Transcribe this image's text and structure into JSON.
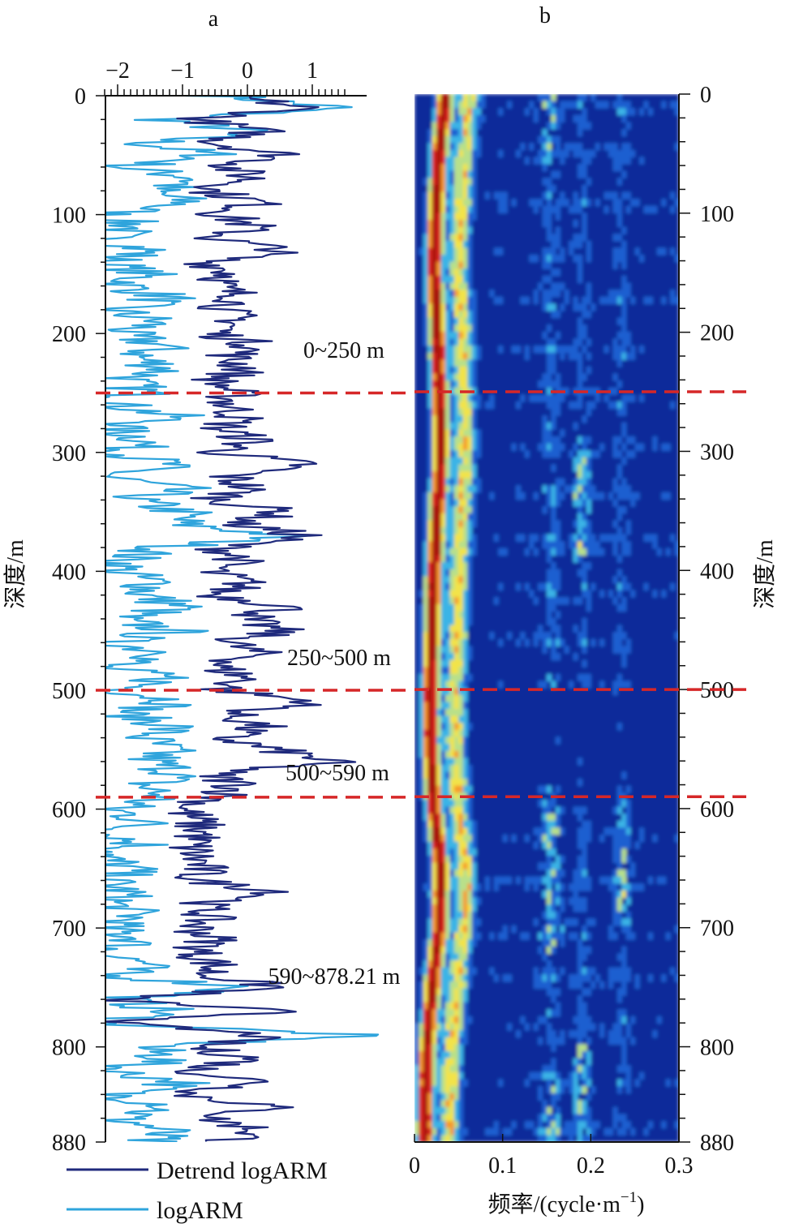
{
  "panels": {
    "a_label": "a",
    "b_label": "b"
  },
  "chart_data": [
    {
      "type": "line",
      "panel": "a",
      "x_ticks": [
        "−2",
        "−1",
        "0",
        "1"
      ],
      "x_tick_values": [
        -2,
        -1,
        0,
        1
      ],
      "xlim": [
        -2.3,
        1.6
      ],
      "y_ticks": [
        "0",
        "100",
        "200",
        "300",
        "400",
        "500",
        "600",
        "700",
        "800",
        "880"
      ],
      "y_tick_values": [
        0,
        100,
        200,
        300,
        400,
        500,
        600,
        700,
        800,
        880
      ],
      "ylim": [
        0,
        880
      ],
      "y_inverted": true,
      "ylabel": "深度/m",
      "legend_position": "bottom-left",
      "series": [
        {
          "name": "Detrend logARM",
          "color": "#1f2a7c",
          "depth": [
            0,
            10,
            20,
            30,
            40,
            50,
            60,
            70,
            80,
            90,
            100,
            110,
            120,
            130,
            140,
            150,
            160,
            170,
            180,
            190,
            200,
            210,
            220,
            230,
            240,
            250,
            260,
            270,
            280,
            290,
            300,
            310,
            320,
            330,
            340,
            350,
            360,
            370,
            380,
            390,
            400,
            410,
            420,
            430,
            440,
            450,
            460,
            470,
            480,
            490,
            500,
            510,
            520,
            530,
            540,
            550,
            560,
            570,
            580,
            590,
            600,
            610,
            620,
            630,
            640,
            650,
            660,
            670,
            680,
            690,
            700,
            710,
            720,
            730,
            740,
            750,
            760,
            770,
            780,
            790,
            800,
            810,
            820,
            830,
            840,
            850,
            860,
            870,
            880
          ],
          "value": [
            -0.3,
            0.9,
            -0.8,
            0.2,
            -0.5,
            0.6,
            -0.3,
            0.1,
            -0.6,
            0.2,
            -0.4,
            0.1,
            -0.5,
            0.6,
            -0.6,
            -0.2,
            -0.5,
            0.0,
            -0.4,
            -0.1,
            -0.5,
            0.2,
            -0.3,
            0.0,
            -0.5,
            -0.2,
            -0.3,
            -0.1,
            -0.4,
            0.1,
            -0.4,
            0.9,
            -0.3,
            0.0,
            -0.5,
            0.6,
            -0.2,
            0.9,
            -0.4,
            -0.1,
            -0.6,
            0.0,
            -0.5,
            0.7,
            -0.1,
            0.5,
            -0.3,
            0.2,
            -0.5,
            0.0,
            -0.4,
            1.1,
            -0.3,
            0.2,
            -0.4,
            0.4,
            1.3,
            -0.6,
            -0.1,
            -0.4,
            -1.0,
            -0.8,
            -0.7,
            -0.9,
            -0.8,
            -0.7,
            -0.8,
            0.6,
            -0.7,
            -0.6,
            -0.8,
            -0.5,
            -0.8,
            -0.5,
            -0.6,
            0.5,
            -2.2,
            0.5,
            -2.1,
            0.3,
            -0.8,
            0.1,
            -0.9,
            0.3,
            -1.0,
            0.4,
            -0.6,
            0.2,
            -0.3
          ]
        },
        {
          "name": "logARM",
          "color": "#2fa4dc",
          "depth": [
            0,
            10,
            20,
            30,
            40,
            50,
            60,
            70,
            80,
            90,
            100,
            110,
            120,
            130,
            140,
            150,
            160,
            170,
            180,
            190,
            200,
            210,
            220,
            230,
            240,
            250,
            260,
            270,
            280,
            290,
            300,
            310,
            320,
            330,
            340,
            350,
            360,
            370,
            380,
            390,
            400,
            410,
            420,
            430,
            440,
            450,
            460,
            470,
            480,
            490,
            500,
            510,
            520,
            530,
            540,
            550,
            560,
            570,
            580,
            590,
            600,
            610,
            620,
            630,
            640,
            650,
            660,
            670,
            680,
            690,
            700,
            710,
            720,
            730,
            740,
            750,
            760,
            770,
            780,
            790,
            800,
            810,
            820,
            830,
            840,
            850,
            860,
            870,
            880
          ],
          "value": [
            -0.4,
            1.4,
            -1.3,
            0.0,
            -1.6,
            -0.5,
            -1.9,
            -0.7,
            -1.5,
            -0.9,
            -2.2,
            -1.7,
            -2.3,
            -1.5,
            -2.2,
            -1.6,
            -1.9,
            -1.2,
            -2.1,
            -1.4,
            -2.0,
            -1.3,
            -1.7,
            -1.2,
            -1.9,
            -1.6,
            -2.0,
            -1.1,
            -2.1,
            -1.5,
            -2.0,
            -1.2,
            -2.2,
            -1.1,
            -1.8,
            -1.0,
            -1.1,
            0.6,
            -1.3,
            -1.9,
            -2.0,
            -1.4,
            -1.6,
            -1.0,
            -2.1,
            -1.1,
            -2.2,
            -1.0,
            -2.3,
            -1.2,
            -1.9,
            -1.0,
            -2.0,
            -1.1,
            -1.6,
            -1.3,
            -1.5,
            -1.0,
            -1.6,
            -1.3,
            -2.1,
            -1.5,
            -2.2,
            -1.6,
            -2.3,
            -1.8,
            -2.2,
            -1.9,
            -2.1,
            -1.7,
            -2.2,
            -1.6,
            -2.3,
            -1.5,
            -2.2,
            0.1,
            -2.0,
            -1.2,
            -2.3,
            1.7,
            -1.6,
            -1.2,
            -2.2,
            -0.9,
            -2.1,
            -1.1,
            -2.0,
            -1.3,
            -1.6
          ]
        }
      ],
      "annotations": [
        "0~250 m",
        "250~500 m",
        "500~590 m",
        "590~878.21 m"
      ],
      "boundaries": [
        250,
        500,
        590
      ],
      "boundary_color": "#d62728"
    },
    {
      "type": "heatmap",
      "panel": "b",
      "x_ticks": [
        "0",
        "0.1",
        "0.2",
        "0.3"
      ],
      "x_tick_values": [
        0,
        0.1,
        0.2,
        0.3
      ],
      "xlim": [
        0,
        0.3
      ],
      "xlabel": "频率/(cycle·m",
      "xlabel_sup": "−1",
      "xlabel_end": ")",
      "y_ticks": [
        "0",
        "100",
        "200",
        "300",
        "400",
        "500",
        "600",
        "700",
        "800",
        "880"
      ],
      "y_tick_values": [
        0,
        100,
        200,
        300,
        400,
        500,
        600,
        700,
        800,
        880
      ],
      "ylim": [
        0,
        880
      ],
      "y_inverted": true,
      "ylabel": "深度/m",
      "colormap": [
        "#0a2a9a",
        "#1f5fd0",
        "#3ab4e6",
        "#b8e08a",
        "#f2e34a",
        "#f59a2a",
        "#d9241b",
        "#a8120f"
      ],
      "dominant_ridge": {
        "depth": [
          0,
          50,
          100,
          150,
          200,
          250,
          300,
          350,
          400,
          450,
          500,
          550,
          600,
          650,
          700,
          750,
          800,
          850,
          880
        ],
        "frequency": [
          0.035,
          0.028,
          0.024,
          0.022,
          0.026,
          0.028,
          0.03,
          0.026,
          0.022,
          0.02,
          0.018,
          0.018,
          0.022,
          0.03,
          0.028,
          0.02,
          0.014,
          0.012,
          0.012
        ]
      },
      "boundaries": [
        250,
        500,
        590
      ]
    }
  ]
}
